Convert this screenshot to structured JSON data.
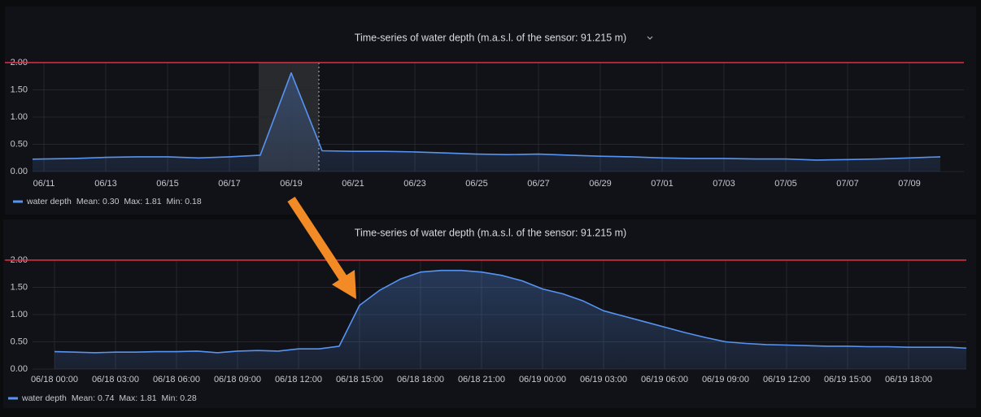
{
  "chart_data": [
    {
      "type": "line",
      "title": "Time-series of water depth (m.a.s.l. of the sensor: 91.215 m)",
      "x": [
        "06/10",
        "06/11",
        "06/12",
        "06/13",
        "06/14",
        "06/15",
        "06/16",
        "06/17",
        "06/18",
        "06/19",
        "06/20",
        "06/21",
        "06/22",
        "06/23",
        "06/24",
        "06/25",
        "06/26",
        "06/27",
        "06/28",
        "06/29",
        "06/30",
        "07/01",
        "07/02",
        "07/03",
        "07/04",
        "07/05",
        "07/06",
        "07/07",
        "07/08",
        "07/09",
        "07/10"
      ],
      "series": [
        {
          "name": "water depth",
          "color": "#5794f2",
          "values": [
            0.22,
            0.23,
            0.24,
            0.26,
            0.27,
            0.27,
            0.25,
            0.27,
            0.3,
            1.81,
            0.38,
            0.37,
            0.37,
            0.36,
            0.34,
            0.32,
            0.31,
            0.32,
            0.3,
            0.28,
            0.27,
            0.25,
            0.24,
            0.24,
            0.23,
            0.23,
            0.21,
            0.22,
            0.23,
            0.25,
            0.27
          ]
        }
      ],
      "legend_stats": [
        "Mean: 0.30",
        "Max: 1.81",
        "Min: 0.18"
      ],
      "ylim": [
        0,
        2
      ],
      "yticks": [
        {
          "value": 0,
          "label": "0.00"
        },
        {
          "value": 0.5,
          "label": "0.50"
        },
        {
          "value": 1,
          "label": "1.00"
        },
        {
          "value": 1.5,
          "label": "1.50"
        },
        {
          "value": 2,
          "label": "2.00"
        }
      ],
      "xticks": [
        "06/11",
        "06/13",
        "06/15",
        "06/17",
        "06/19",
        "06/21",
        "06/23",
        "06/25",
        "06/27",
        "06/29",
        "07/01",
        "07/03",
        "07/05",
        "07/07",
        "07/09"
      ],
      "threshold": 2,
      "threshold_color": "#e02f44",
      "grid": true
    },
    {
      "type": "line",
      "title": "Time-series of water depth (m.a.s.l. of the sensor: 91.215 m)",
      "x": [
        "06/18 00:00",
        "06/18 01:00",
        "06/18 02:00",
        "06/18 03:00",
        "06/18 04:00",
        "06/18 05:00",
        "06/18 06:00",
        "06/18 07:00",
        "06/18 08:00",
        "06/18 09:00",
        "06/18 10:00",
        "06/18 11:00",
        "06/18 12:00",
        "06/18 13:00",
        "06/18 14:00",
        "06/18 15:00",
        "06/18 16:00",
        "06/18 17:00",
        "06/18 18:00",
        "06/18 19:00",
        "06/18 20:00",
        "06/18 21:00",
        "06/18 22:00",
        "06/18 23:00",
        "06/19 00:00",
        "06/19 01:00",
        "06/19 02:00",
        "06/19 03:00",
        "06/19 04:00",
        "06/19 05:00",
        "06/19 06:00",
        "06/19 07:00",
        "06/19 08:00",
        "06/19 09:00",
        "06/19 10:00",
        "06/19 11:00",
        "06/19 12:00",
        "06/19 13:00",
        "06/19 14:00",
        "06/19 15:00",
        "06/19 16:00",
        "06/19 17:00",
        "06/19 18:00",
        "06/19 19:00",
        "06/19 20:00",
        "06/19 21:00"
      ],
      "series": [
        {
          "name": "water depth",
          "color": "#5794f2",
          "values": [
            0.32,
            0.31,
            0.3,
            0.31,
            0.31,
            0.32,
            0.32,
            0.33,
            0.3,
            0.33,
            0.34,
            0.33,
            0.37,
            0.37,
            0.42,
            1.17,
            1.45,
            1.65,
            1.78,
            1.81,
            1.81,
            1.78,
            1.72,
            1.62,
            1.47,
            1.38,
            1.25,
            1.07,
            0.97,
            0.87,
            0.77,
            0.67,
            0.58,
            0.5,
            0.47,
            0.45,
            0.44,
            0.43,
            0.42,
            0.42,
            0.41,
            0.41,
            0.4,
            0.4,
            0.4,
            0.38
          ]
        }
      ],
      "legend_stats": [
        "Mean: 0.74",
        "Max: 1.81",
        "Min: 0.28"
      ],
      "ylim": [
        0,
        2
      ],
      "yticks": [
        {
          "value": 0,
          "label": "0.00"
        },
        {
          "value": 0.5,
          "label": "0.50"
        },
        {
          "value": 1,
          "label": "1.00"
        },
        {
          "value": 1.5,
          "label": "1.50"
        },
        {
          "value": 2,
          "label": "2.00"
        }
      ],
      "xticks": [
        "06/18 00:00",
        "06/18 03:00",
        "06/18 06:00",
        "06/18 09:00",
        "06/18 12:00",
        "06/18 15:00",
        "06/18 18:00",
        "06/18 21:00",
        "06/19 00:00",
        "06/19 03:00",
        "06/19 06:00",
        "06/19 09:00",
        "06/19 12:00",
        "06/19 15:00",
        "06/19 18:00"
      ],
      "threshold": 2,
      "threshold_color": "#e02f44",
      "grid": true
    }
  ]
}
